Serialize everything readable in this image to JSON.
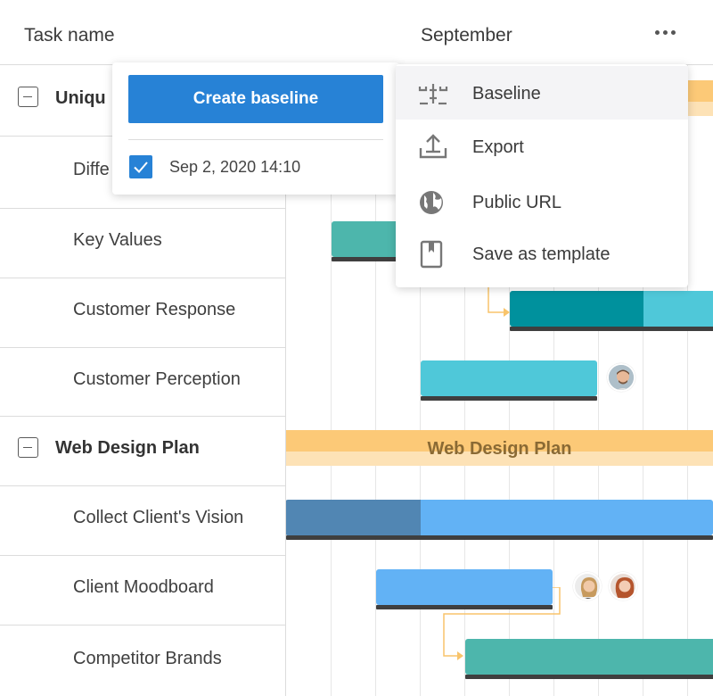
{
  "header": {
    "task_column_label": "Task name",
    "month_label": "September",
    "more_icon": "more-horizontal-icon"
  },
  "tasks": [
    {
      "label": "Uniqu",
      "type": "group"
    },
    {
      "label": "Diffe",
      "type": "task"
    },
    {
      "label": "Key Values",
      "type": "task"
    },
    {
      "label": "Customer Response",
      "type": "task"
    },
    {
      "label": "Customer Perception",
      "type": "task"
    },
    {
      "label": "Web Design Plan",
      "type": "group"
    },
    {
      "label": "Collect Client's Vision",
      "type": "task"
    },
    {
      "label": "Client Moodboard",
      "type": "task"
    },
    {
      "label": "Competitor Brands",
      "type": "task"
    }
  ],
  "chart": {
    "summary_label": "Web Design Plan"
  },
  "baseline_popover": {
    "create_button": "Create baseline",
    "baseline_checked": true,
    "baseline_date": "Sep 2, 2020 14:10"
  },
  "menu": {
    "items": [
      {
        "label": "Baseline",
        "icon": "baseline-icon"
      },
      {
        "label": "Export",
        "icon": "export-icon"
      },
      {
        "label": "Public URL",
        "icon": "globe-icon"
      },
      {
        "label": "Save as template",
        "icon": "bookmark-icon"
      }
    ]
  },
  "colors": {
    "accent": "#2782d6",
    "teal": "#4db6ac",
    "dark_teal": "#00919d",
    "cyan": "#4fc8d9",
    "summary": "#fcc977",
    "blue": "#62b2f5",
    "steel_blue": "#5186b3"
  }
}
